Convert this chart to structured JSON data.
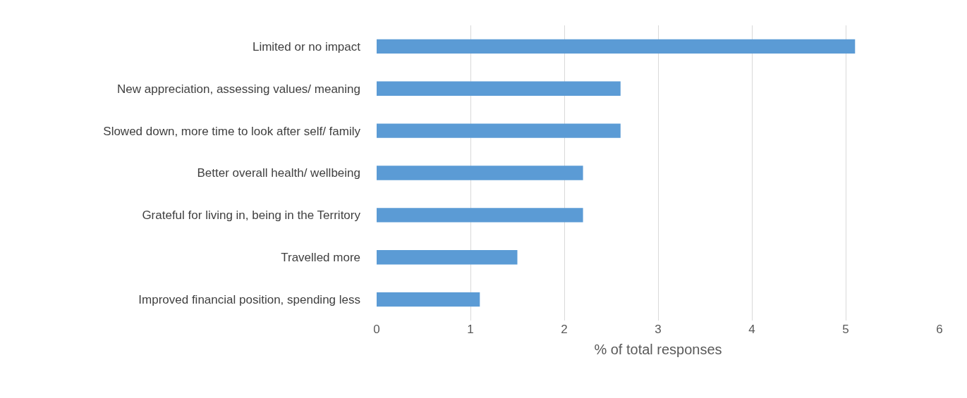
{
  "chart_data": {
    "type": "bar",
    "orientation": "horizontal",
    "xlabel": "% of total responses",
    "categories": [
      "Limited or no impact",
      "New appreciation, assessing values/ meaning",
      "Slowed down, more time to look after self/ family",
      "Better overall health/ wellbeing",
      "Grateful for living in, being in the Territory",
      "Travelled more",
      "Improved financial position, spending less"
    ],
    "values": [
      5.1,
      2.6,
      2.6,
      2.2,
      2.2,
      1.5,
      1.1
    ],
    "color": "#5b9bd5",
    "xlim": [
      0,
      6
    ],
    "xticks": [
      0,
      1,
      2,
      3,
      4,
      5,
      6
    ],
    "grid": "x",
    "legend": false
  }
}
